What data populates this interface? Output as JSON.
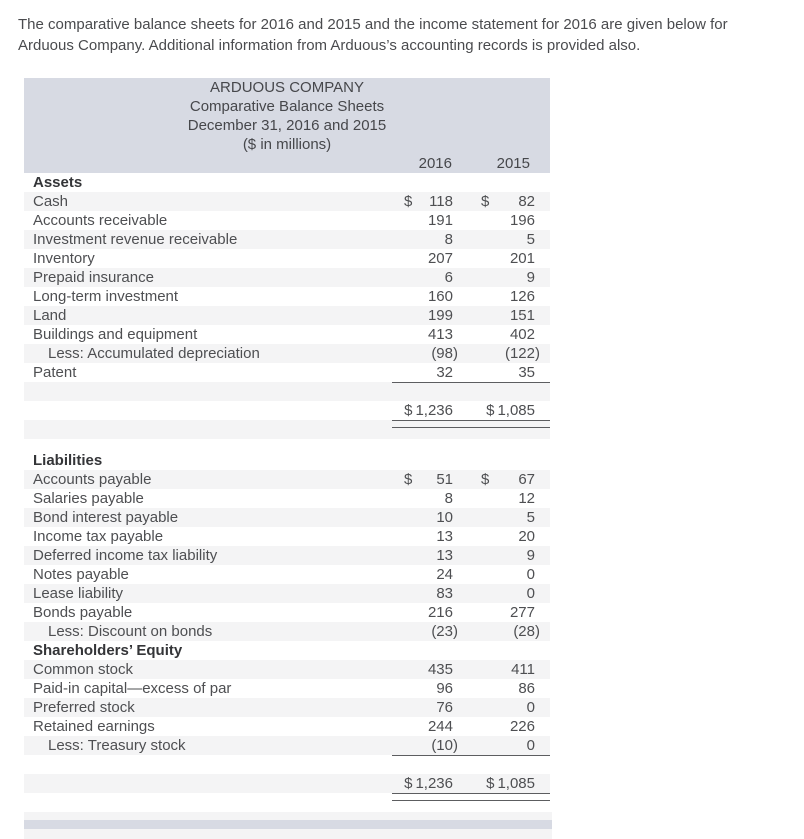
{
  "intro_lines": [
    "The comparative balance sheets for 2016 and 2015 and the income statement for 2016 are given below for",
    "Arduous Company. Additional information from Arduous’s accounting records is provided also."
  ],
  "statement": {
    "heading": [
      "ARDUOUS COMPANY",
      "Comparative Balance Sheets",
      "December 31, 2016 and 2015",
      "($ in millions)"
    ],
    "columns": [
      "2016",
      "2015"
    ],
    "rows": [
      {
        "type": "section",
        "label": "Assets"
      },
      {
        "type": "item",
        "label": "Cash",
        "dollar": true,
        "v2016": "118",
        "v2015": "82",
        "shaded": true
      },
      {
        "type": "item",
        "label": "Accounts receivable",
        "v2016": "191",
        "v2015": "196"
      },
      {
        "type": "item",
        "label": "Investment revenue receivable",
        "v2016": "8",
        "v2015": "5",
        "shaded": true
      },
      {
        "type": "item",
        "label": "Inventory",
        "v2016": "207",
        "v2015": "201"
      },
      {
        "type": "item",
        "label": "Prepaid insurance",
        "v2016": "6",
        "v2015": "9",
        "shaded": true
      },
      {
        "type": "item",
        "label": "Long-term investment",
        "v2016": "160",
        "v2015": "126"
      },
      {
        "type": "item",
        "label": "Land",
        "v2016": "199",
        "v2015": "151",
        "shaded": true
      },
      {
        "type": "item",
        "label": "Buildings and equipment",
        "v2016": "413",
        "v2015": "402"
      },
      {
        "type": "item",
        "label": "Less: Accumulated depreciation",
        "indent": true,
        "v2016": "(98)",
        "v2015": "(122)",
        "shaded": true
      },
      {
        "type": "item",
        "label": "Patent",
        "v2016": "32",
        "v2015": "35"
      },
      {
        "type": "rule",
        "shaded": true
      },
      {
        "type": "total",
        "dollar": true,
        "v2016": "1,236",
        "v2015": "1,085"
      },
      {
        "type": "double-rule",
        "shaded": true
      },
      {
        "type": "spacer"
      },
      {
        "type": "section",
        "label": "Liabilities"
      },
      {
        "type": "item",
        "label": "Accounts payable",
        "dollar": true,
        "v2016": "51",
        "v2015": "67",
        "shaded": true
      },
      {
        "type": "item",
        "label": "Salaries payable",
        "v2016": "8",
        "v2015": "12"
      },
      {
        "type": "item",
        "label": "Bond interest payable",
        "v2016": "10",
        "v2015": "5",
        "shaded": true
      },
      {
        "type": "item",
        "label": "Income tax payable",
        "v2016": "13",
        "v2015": "20"
      },
      {
        "type": "item",
        "label": "Deferred income tax liability",
        "v2016": "13",
        "v2015": "9",
        "shaded": true
      },
      {
        "type": "item",
        "label": "Notes payable",
        "v2016": "24",
        "v2015": "0"
      },
      {
        "type": "item",
        "label": "Lease liability",
        "v2016": "83",
        "v2015": "0",
        "shaded": true
      },
      {
        "type": "item",
        "label": "Bonds payable",
        "v2016": "216",
        "v2015": "277"
      },
      {
        "type": "item",
        "label": "Less: Discount on bonds",
        "indent": true,
        "v2016": "(23)",
        "v2015": "(28)",
        "shaded": true
      },
      {
        "type": "section",
        "label": "Shareholders’ Equity"
      },
      {
        "type": "item",
        "label": "Common stock",
        "v2016": "435",
        "v2015": "411",
        "shaded": true
      },
      {
        "type": "item",
        "label": "Paid-in capital—excess of par",
        "v2016": "96",
        "v2015": "86"
      },
      {
        "type": "item",
        "label": "Preferred stock",
        "v2016": "76",
        "v2015": "0",
        "shaded": true
      },
      {
        "type": "item",
        "label": "Retained earnings",
        "v2016": "244",
        "v2015": "226"
      },
      {
        "type": "item",
        "label": "Less: Treasury stock",
        "indent": true,
        "v2016": "(10)",
        "v2015": "0",
        "shaded": true
      },
      {
        "type": "rule"
      },
      {
        "type": "total",
        "dollar": true,
        "v2016": "1,236",
        "v2015": "1,085",
        "shaded": true
      },
      {
        "type": "double-rule"
      }
    ]
  },
  "colors": {
    "header_bg": "#d7dae3",
    "row_stripe": "#f4f4f5",
    "text": "#4e4f52",
    "heading_text": "#343538",
    "rule": "#5c5d60"
  }
}
